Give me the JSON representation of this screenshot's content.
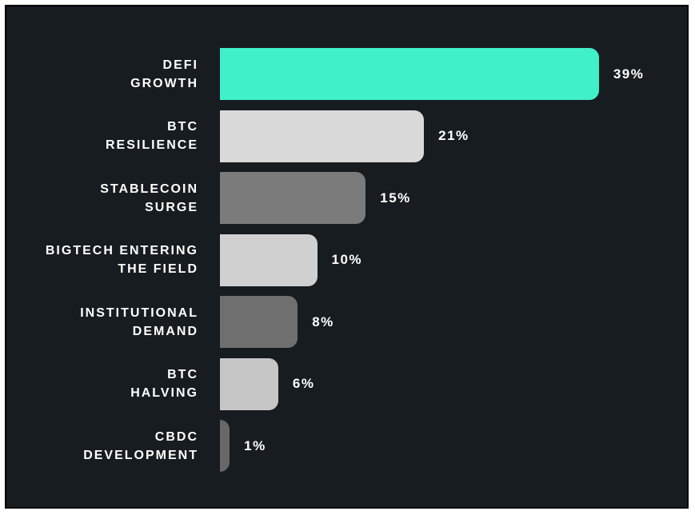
{
  "chart_data": {
    "type": "bar",
    "orientation": "horizontal",
    "categories": [
      "DEFI\nGROWTH",
      "BTC\nRESILIENCE",
      "STABLECOIN\nSURGE",
      "BIGTECH ENTERING\nTHE FIELD",
      "INSTITUTIONAL\nDEMAND",
      "BTC\nHALVING",
      "CBDC\nDEVELOPMENT"
    ],
    "values": [
      39,
      21,
      15,
      10,
      8,
      6,
      1
    ],
    "value_labels": [
      "39%",
      "21%",
      "15%",
      "10%",
      "8%",
      "6%",
      "1%"
    ],
    "colors": [
      "#40f0c8",
      "#d9d9d9",
      "#7b7b7b",
      "#d0d0d0",
      "#6f6f6f",
      "#c6c6c6",
      "#686868"
    ]
  }
}
